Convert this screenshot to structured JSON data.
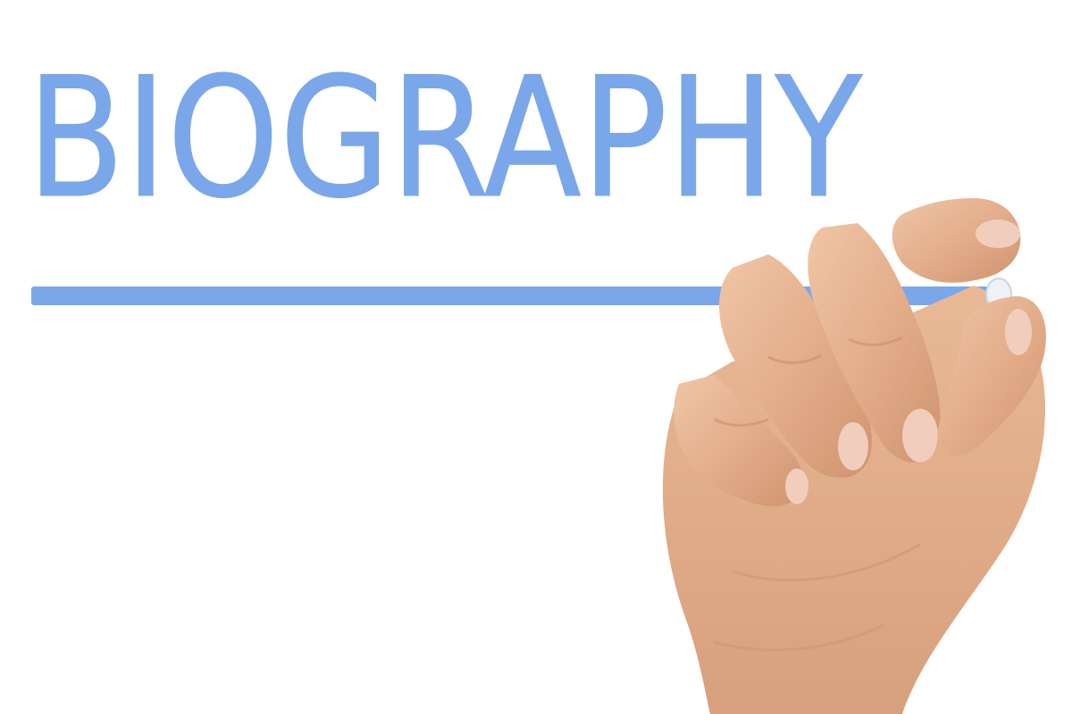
{
  "headline": {
    "text": "BIOGRAPHY"
  },
  "colors": {
    "ink": "#7aa7ea",
    "background": "#ffffff",
    "skin": "#e8b896",
    "skin_shadow": "#c98f6c",
    "nail": "#f1cdbd",
    "marker_tip": "#eef2f6"
  },
  "illustration": {
    "subject": "hand-holding-marker"
  }
}
